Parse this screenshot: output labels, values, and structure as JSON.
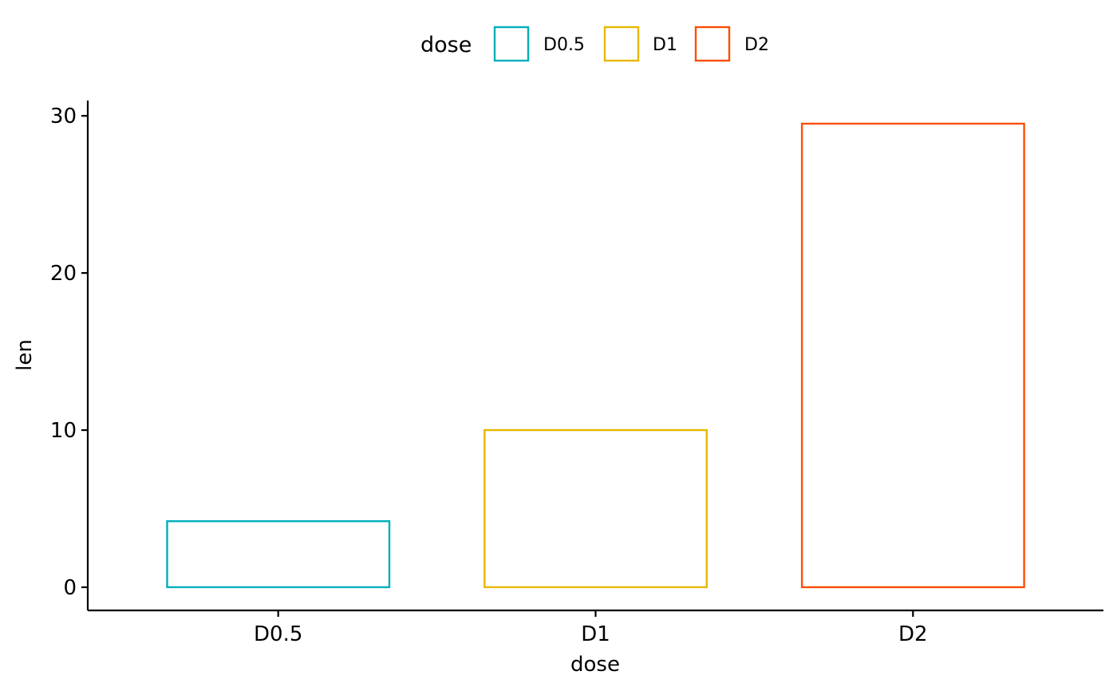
{
  "chart_data": {
    "type": "bar",
    "categories": [
      "D0.5",
      "D1",
      "D2"
    ],
    "values": [
      4.2,
      10.0,
      29.5
    ],
    "colors": [
      "#00AFBB",
      "#E7B800",
      "#FC4E07"
    ],
    "fill": "none",
    "title": "",
    "xlabel": "dose",
    "ylabel": "len",
    "ylim": [
      -1.475,
      30.975
    ],
    "yticks": [
      0,
      10,
      20,
      30
    ],
    "grid": false,
    "legend": {
      "title": "dose",
      "position": "top",
      "entries": [
        "D0.5",
        "D1",
        "D2"
      ]
    }
  }
}
